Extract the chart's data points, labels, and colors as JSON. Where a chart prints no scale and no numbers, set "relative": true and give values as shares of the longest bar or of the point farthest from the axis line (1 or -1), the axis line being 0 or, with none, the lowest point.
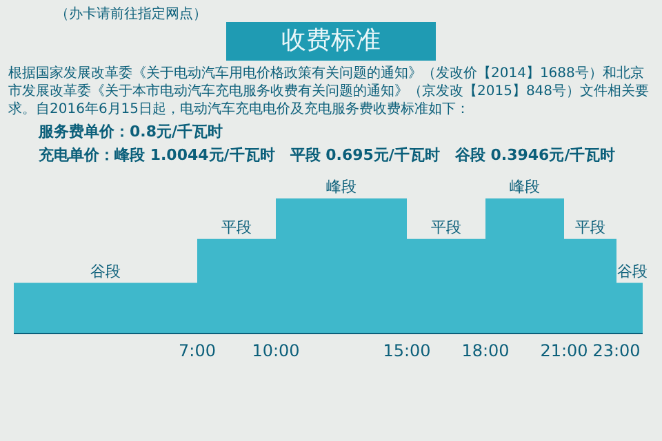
{
  "chart_data": {
    "type": "area",
    "title": "收费标准",
    "subtitle": "根据国家发展改革委《关于电动汽车用电价格政策有关问题的通知》（发改价【2014】1688号）和北京市发展改革委《关于本市电动汽车充电服务收费有关问题的通知》（京发改【2015】848号）文件相关要求。自2016年6月15日起，电动汽车充电电价及充电服务费收费标准如下：",
    "relative": true,
    "x": [
      0,
      7,
      7,
      10,
      10,
      15,
      15,
      18,
      18,
      21,
      21,
      23,
      23,
      24
    ],
    "series": [
      {
        "color": "#3fb8cb",
        "values": [
          0.375,
          0.375,
          0.7,
          0.7,
          1,
          1,
          0.7,
          0.7,
          1,
          1,
          0.7,
          0.7,
          0.375,
          0.375
        ]
      }
    ],
    "xlim": [
      0,
      24
    ],
    "xticks": [
      {
        "value": 7,
        "label": "7:00"
      },
      {
        "value": 10,
        "label": "10:00"
      },
      {
        "value": 15,
        "label": "15:00"
      },
      {
        "value": 18,
        "label": "18:00"
      },
      {
        "value": 21,
        "label": "21:00"
      },
      {
        "value": 23,
        "label": "23:00"
      }
    ],
    "grid": false,
    "legend": false,
    "annotations": [
      "（办卡请前往指定网点）",
      "服务费单价：0.8元/千瓦时",
      "充电单价：峰段 1.0044元/千瓦时　平段 0.695元/千瓦时　谷段 0.3946元/千瓦时",
      {
        "text": "谷段",
        "x": 3.5,
        "y": 0.375
      },
      {
        "text": "平段",
        "x": 8.5,
        "y": 0.7
      },
      {
        "text": "峰段",
        "x": 12.5,
        "y": 1
      },
      {
        "text": "平段",
        "x": 16.5,
        "y": 0.7
      },
      {
        "text": "峰段",
        "x": 19.5,
        "y": 1
      },
      {
        "text": "平段",
        "x": 22,
        "y": 0.7
      },
      {
        "text": "谷段",
        "x": 23.6,
        "y": 0.375
      }
    ]
  }
}
